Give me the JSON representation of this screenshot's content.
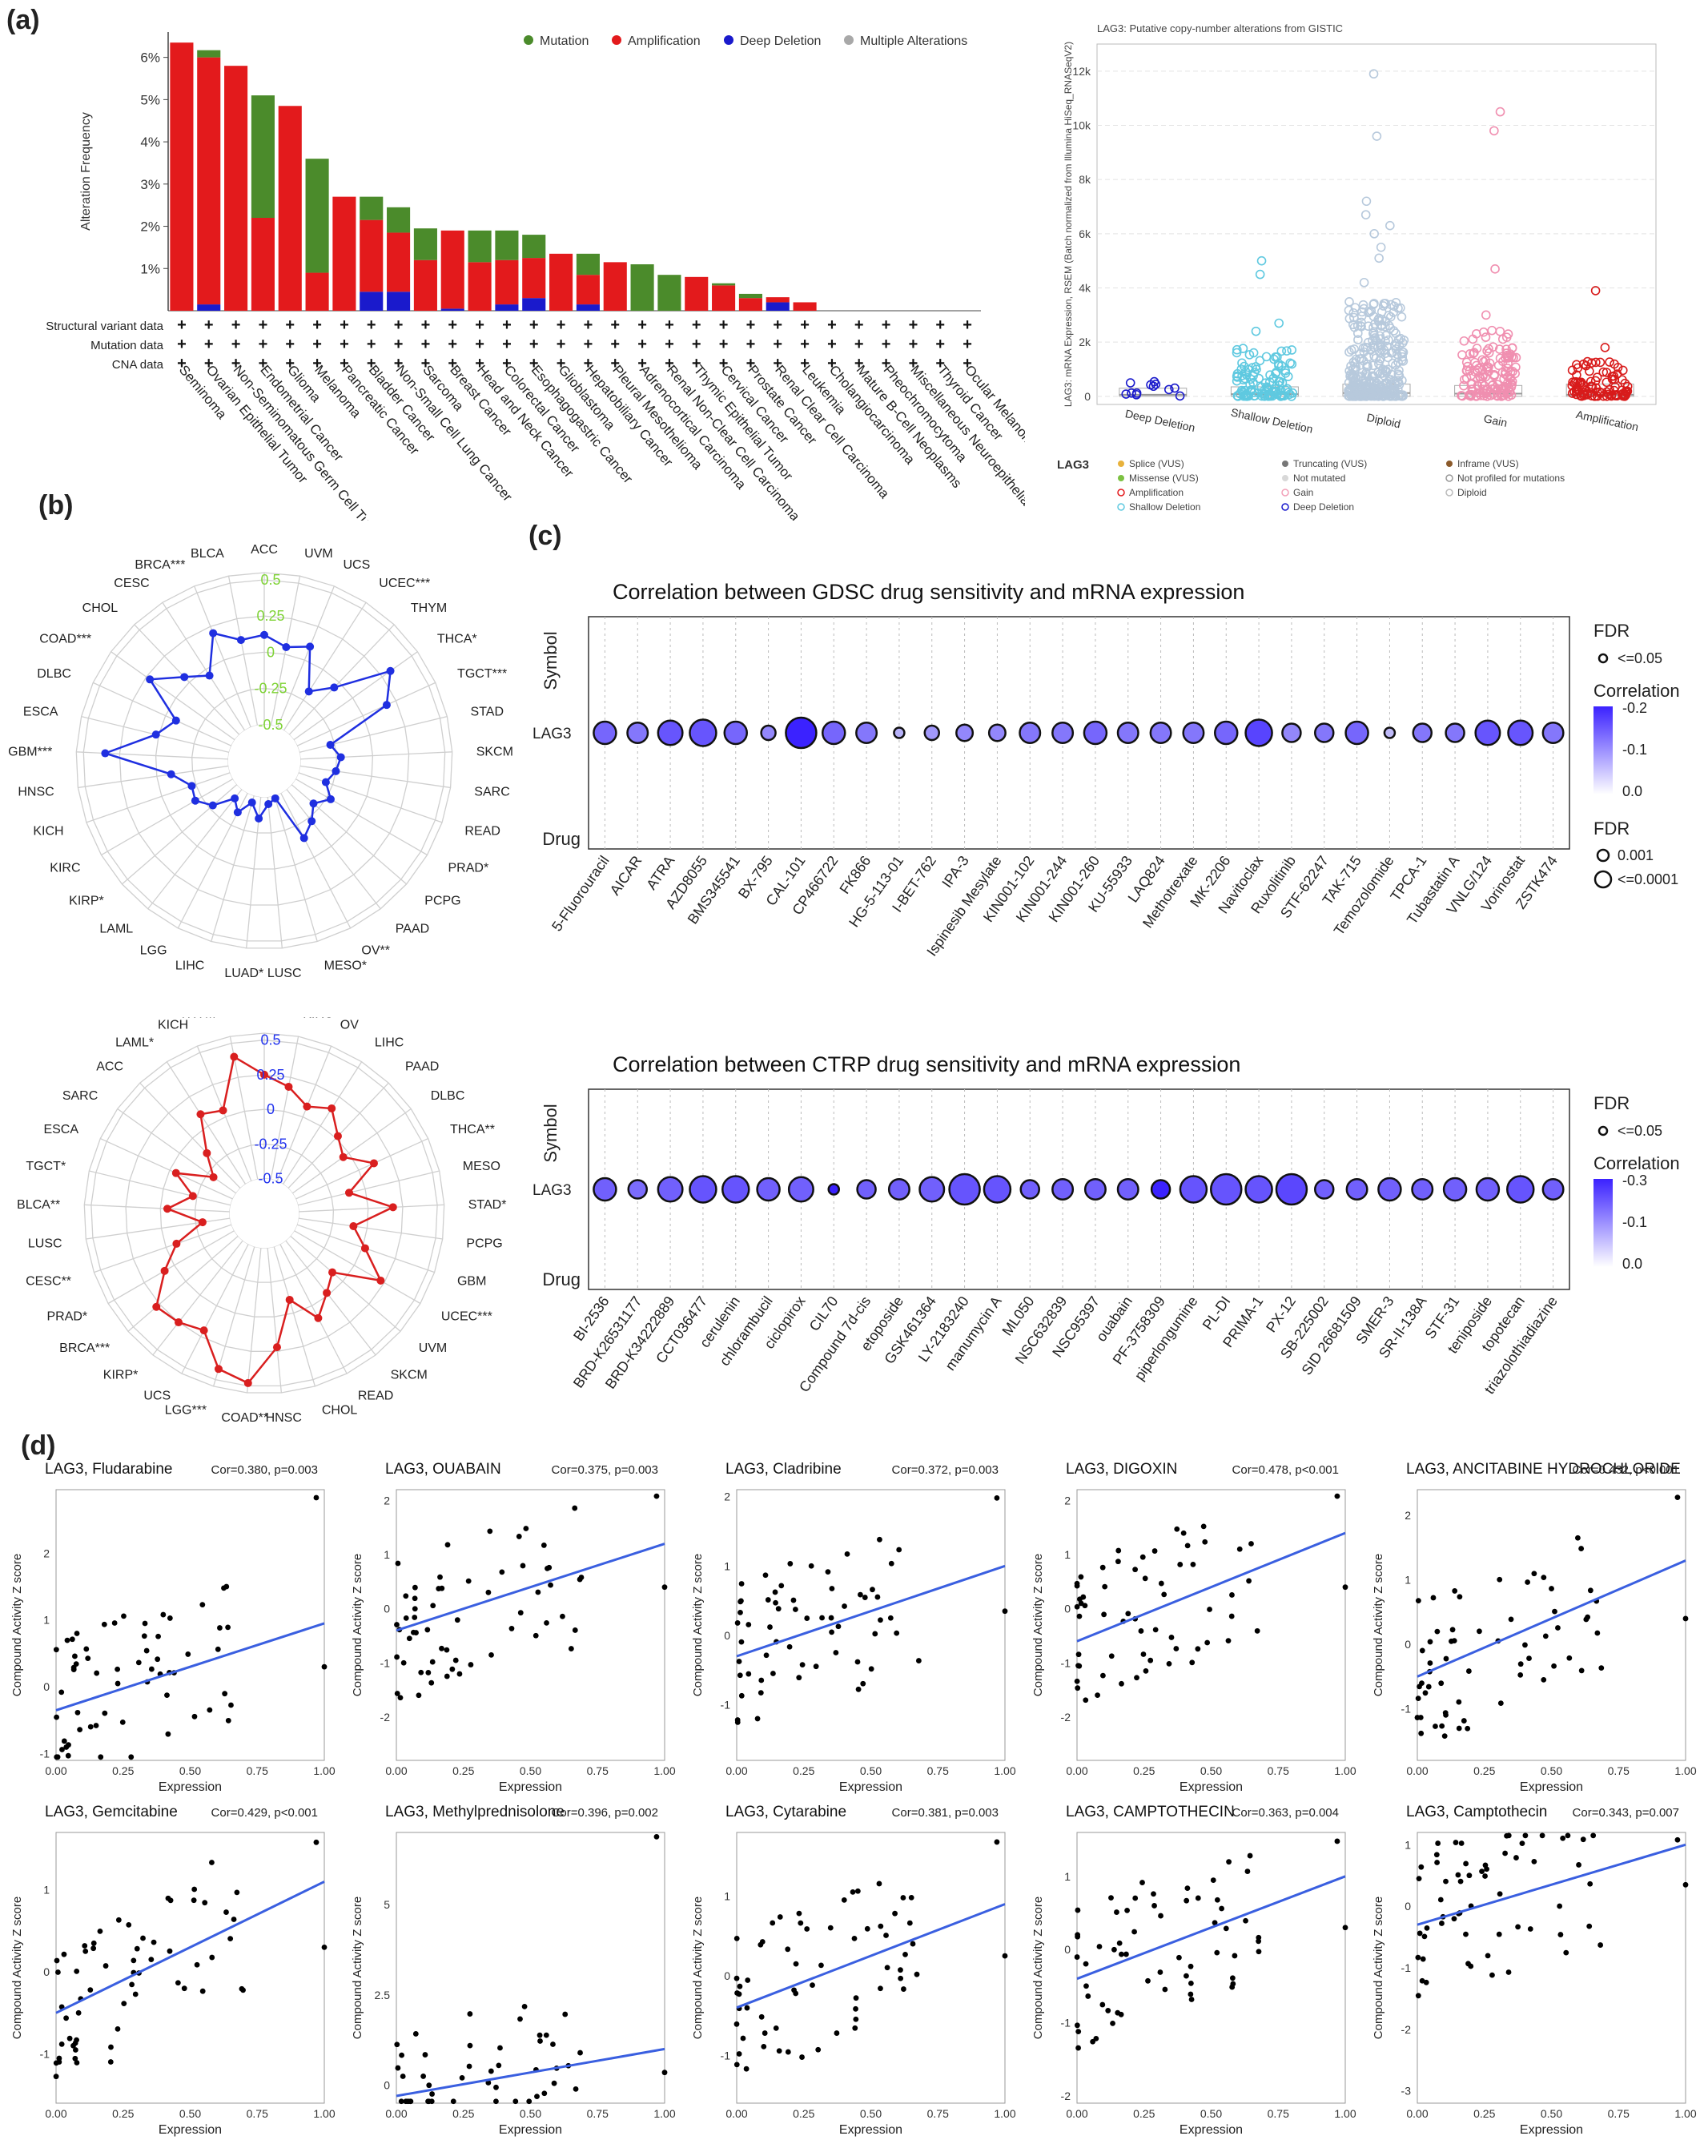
{
  "panel_labels": {
    "a": "(a)",
    "b": "(b)",
    "c": "(c)",
    "d": "(d)"
  },
  "colors": {
    "mutation": "#4b8b2b",
    "amplification": "#e31a1c",
    "deep_deletion": "#1a1acc",
    "multiple": "#a8a8a8",
    "radar_blue": "#1f2fe0",
    "radar_red": "#d91f1f",
    "radar_blue_ticks": "#7fd336",
    "radar_red_ticks": "#2233ee",
    "regression": "#3a5fe0",
    "dot_lo": "#dcdcf7",
    "dot_hi": "#3b22ff"
  },
  "chart_data": [
    {
      "id": "cbio_alteration",
      "type": "bar",
      "ylabel": "Alteration Frequency",
      "ylim": [
        0,
        6.6
      ],
      "yticks": [
        "1%",
        "2%",
        "3%",
        "4%",
        "5%",
        "6%"
      ],
      "legend": [
        "Mutation",
        "Amplification",
        "Deep Deletion",
        "Multiple Alterations"
      ],
      "row_labels": [
        "Structural variant data",
        "Mutation data",
        "CNA data"
      ],
      "row_marker": "+",
      "categories": [
        "Seminoma",
        "Ovarian Epithelial Tumor",
        "Non-Seminomatous Germ Cell Tumor",
        "Endometrial Cancer",
        "Glioma",
        "Melanoma",
        "Pancreatic Cancer",
        "Bladder Cancer",
        "Non-Small Cell Lung Cancer",
        "Sarcoma",
        "Breast Cancer",
        "Head and Neck Cancer",
        "Colorectal Cancer",
        "Esophagogastric Cancer",
        "Glioblastoma",
        "Hepatobiliary Cancer",
        "Pleural Mesothelioma",
        "Adrenocortical Carcinoma",
        "Renal Non-Clear Cell Carcinoma",
        "Thymic Epithelial Tumor",
        "Cervical Cancer",
        "Prostate Cancer",
        "Renal Clear Cell Carcinoma",
        "Leukemia",
        "Cholangiocarcinoma",
        "Mature B-Cell Neoplasms",
        "Pheochromocytoma",
        "Miscellaneous Neuroepithelial Tumor",
        "Thyroid Cancer",
        "Ocular Melanoma"
      ],
      "series": [
        {
          "name": "Deep Deletion",
          "values": [
            0,
            0.15,
            0,
            0,
            0,
            0,
            0,
            0.45,
            0.45,
            0,
            0.05,
            0,
            0.15,
            0.3,
            0,
            0.15,
            0,
            0,
            0,
            0,
            0,
            0,
            0.2,
            0,
            0,
            0,
            0,
            0,
            0,
            0
          ]
        },
        {
          "name": "Amplification",
          "values": [
            6.35,
            5.85,
            5.8,
            2.2,
            4.85,
            0.9,
            2.7,
            1.7,
            1.4,
            1.2,
            1.85,
            1.15,
            1.05,
            0.95,
            1.35,
            0.7,
            1.15,
            0,
            0,
            0.8,
            0.6,
            0.3,
            0.12,
            0.2,
            0,
            0,
            0,
            0,
            0,
            0
          ]
        },
        {
          "name": "Mutation",
          "values": [
            0,
            0.17,
            0,
            2.9,
            0,
            2.7,
            0,
            0.55,
            0.6,
            0.75,
            0,
            0.75,
            0.7,
            0.55,
            0,
            0.5,
            0,
            1.1,
            0.85,
            0,
            0.05,
            0.1,
            0,
            0,
            0,
            0,
            0,
            0,
            0,
            0
          ]
        }
      ]
    },
    {
      "id": "cbio_strip",
      "type": "scatter",
      "title": "LAG3: Putative copy-number alterations from GISTIC",
      "ylabel": "LAG3: mRNA Expression, RSEM (Batch normalized from Illumina HiSeq_RNASeqV2)",
      "categories": [
        "Deep Deletion",
        "Shallow Deletion",
        "Diploid",
        "Gain",
        "Amplification"
      ],
      "yticks": [
        "0",
        "2k",
        "4k",
        "6k",
        "8k",
        "10k",
        "12k"
      ],
      "ylim": [
        -300,
        13000
      ],
      "legend_title": "LAG3",
      "legend": [
        [
          "Splice (VUS)",
          "#e8b23c",
          "dot"
        ],
        [
          "Truncating (VUS)",
          "#777777",
          "dot"
        ],
        [
          "Inframe (VUS)",
          "#8b5a2b",
          "dot"
        ],
        [
          "Missense (VUS)",
          "#7cc142",
          "dot"
        ],
        [
          "Not mutated",
          "#d8d8d8",
          "dot"
        ],
        [
          "Not profiled for mutations",
          "#ffffff",
          "ring-grey"
        ],
        [
          "Amplification",
          "#e31a1c",
          "ring"
        ],
        [
          "Gain",
          "#f2a0b8",
          "ring"
        ],
        [
          "Diploid",
          "#bbbbbb",
          "ring"
        ],
        [
          "Shallow Deletion",
          "#5fc9e0",
          "ring"
        ],
        [
          "Deep Deletion",
          "#1a1acc",
          "ring"
        ]
      ],
      "groups": [
        {
          "color": "#1a1acc",
          "median": 60,
          "q3": 300,
          "n": 12,
          "max": 700,
          "outliers": []
        },
        {
          "color": "#5fc9e0",
          "median": 80,
          "q3": 350,
          "n": 110,
          "max": 1800,
          "outliers": [
            2400,
            2700,
            4500,
            5000
          ]
        },
        {
          "color": "#b7c9dc",
          "median": 120,
          "q3": 450,
          "n": 320,
          "max": 3500,
          "outliers": [
            4200,
            5100,
            5500,
            6000,
            6300,
            6700,
            7200,
            9600,
            11900
          ]
        },
        {
          "color": "#f08fb0",
          "median": 100,
          "q3": 400,
          "n": 140,
          "max": 2600,
          "outliers": [
            3000,
            4700,
            9800,
            10500
          ]
        },
        {
          "color": "#d81b1b",
          "median": 60,
          "q3": 450,
          "n": 90,
          "max": 1300,
          "outliers": [
            1800,
            3900
          ]
        }
      ]
    },
    {
      "id": "radar_blue",
      "type": "radar",
      "rticks": [
        "0.5",
        "0.25",
        "0",
        "-0.25",
        "-0.5"
      ],
      "rlim": [
        -0.75,
        0.55
      ],
      "categories": [
        "ACC",
        "UVM",
        "UCS",
        "UCEC***",
        "THYM",
        "THCA*",
        "TGCT***",
        "STAD",
        "SKCM",
        "SARC",
        "READ",
        "PRAD*",
        "PCPG",
        "PAAD",
        "OV**",
        "MESO*",
        "LUSC",
        "LUAD*",
        "LIHC",
        "LGG",
        "LAML",
        "KIRP*",
        "KIRC",
        "KICH",
        "HNSC",
        "GBM***",
        "ESCA",
        "DLBC",
        "COAD***",
        "CHOL",
        "CESC",
        "BRCA***",
        "BLCA"
      ],
      "values": [
        0.12,
        0.05,
        0.1,
        -0.18,
        -0.05,
        0.32,
        0.18,
        -0.28,
        -0.22,
        -0.25,
        -0.3,
        -0.22,
        -0.3,
        -0.22,
        -0.15,
        -0.48,
        -0.45,
        -0.35,
        -0.45,
        -0.35,
        -0.42,
        -0.28,
        -0.2,
        -0.22,
        -0.1,
        0.35,
        0.02,
        -0.08,
        0.22,
        0.05,
        -0.05,
        0.2,
        0.1
      ]
    },
    {
      "id": "radar_red",
      "type": "radar",
      "rticks": [
        "0.5",
        "0.25",
        "0",
        "-0.25",
        "-0.5"
      ],
      "rlim": [
        -0.75,
        0.55
      ],
      "categories": [
        "LUAD**",
        "KIRC*",
        "OV",
        "LIHC",
        "PAAD",
        "DLBC",
        "THCA**",
        "MESO",
        "STAD*",
        "PCPG",
        "GBM",
        "UCEC***",
        "UVM",
        "SKCM",
        "READ",
        "CHOL",
        "HNSC",
        "COAD**",
        "LGG***",
        "UCS",
        "KIRP*",
        "BRCA***",
        "PRAD*",
        "CESC**",
        "LUSC",
        "BLCA**",
        "TGCT*",
        "ESCA",
        "SARC",
        "ACC",
        "LAML*",
        "KICH",
        "THYM**"
      ],
      "values": [
        0.25,
        0.18,
        0.08,
        0.15,
        0.02,
        -0.05,
        0.12,
        -0.12,
        0.18,
        -0.1,
        0.02,
        0.22,
        -0.1,
        -0.02,
        0.1,
        -0.1,
        0.22,
        0.48,
        0.42,
        0.2,
        0.25,
        0.28,
        0.08,
        -0.08,
        -0.3,
        -0.05,
        -0.22,
        -0.05,
        -0.3,
        -0.15,
        0.1,
        0.05,
        0.4
      ]
    },
    {
      "id": "gdsc_bubble",
      "type": "scatter",
      "title": "Correlation between GDSC drug sensitivity and mRNA expression",
      "xlabel": "Drug",
      "ylabel": "Symbol",
      "row": "LAG3",
      "legend_fdr_title": "FDR",
      "legend_fdr": [
        "<=0.05"
      ],
      "legend_corr_title": "Correlation",
      "legend_corr_ticks": [
        "-0.2",
        "-0.1",
        "0.0"
      ],
      "legend_size_title": "FDR",
      "legend_size": [
        "0.001",
        "<=0.0001"
      ],
      "legend_size_truncated": "1",
      "drugs": [
        "5-Fluorouracil",
        "AICAR",
        "ATRA",
        "AZD8055",
        "BMS345541",
        "BX-795",
        "CAL-101",
        "CP466722",
        "FK866",
        "HG-5-113-01",
        "I-BET-762",
        "IPA-3",
        "Ispinesib Mesylate",
        "KIN001-102",
        "KIN001-244",
        "KIN001-260",
        "KU-55933",
        "LAQ824",
        "Methotrexate",
        "MK-2206",
        "Navitoclax",
        "Ruxolitinib",
        "STF-62247",
        "TAK-715",
        "Temozolomide",
        "TPCA-1",
        "Tubastatin A",
        "VNLG/124",
        "Vorinostat",
        "ZSTK474"
      ],
      "correlation": [
        -0.14,
        -0.12,
        -0.16,
        -0.16,
        -0.14,
        -0.1,
        -0.22,
        -0.14,
        -0.12,
        -0.05,
        -0.08,
        -0.1,
        -0.1,
        -0.12,
        -0.12,
        -0.14,
        -0.12,
        -0.12,
        -0.12,
        -0.14,
        -0.18,
        -0.1,
        -0.12,
        -0.14,
        -0.04,
        -0.12,
        -0.12,
        -0.16,
        -0.16,
        -0.12
      ],
      "log10_fdr": [
        4,
        3.5,
        4.5,
        5,
        4,
        2,
        6,
        4,
        3.5,
        1,
        2,
        2.5,
        2.5,
        3.5,
        3.5,
        4,
        3.5,
        3.5,
        3.5,
        4,
        5,
        3,
        3,
        4,
        1,
        3,
        3,
        4.5,
        4.5,
        3.5
      ]
    },
    {
      "id": "ctrp_bubble",
      "type": "scatter",
      "title": "Correlation between CTRP drug sensitivity and mRNA expression",
      "xlabel": "Drug",
      "ylabel": "Symbol",
      "row": "LAG3",
      "legend_fdr_title": "FDR",
      "legend_fdr": [
        "<=0.05"
      ],
      "legend_corr_title": "Correlation",
      "legend_corr_ticks": [
        "-0.3",
        "-0.1",
        "0.0"
      ],
      "drugs": [
        "BI-2536",
        "BRD-K26531177",
        "BRD-K34222889",
        "CCT036477",
        "cerulenin",
        "chlorambucil",
        "ciclopirox",
        "CIL70",
        "Compound 7d-cis",
        "etoposide",
        "GSK461364",
        "LY-2183240",
        "manumycin A",
        "ML050",
        "NSC632839",
        "NSC95397",
        "ouabain",
        "PF-3758309",
        "piperlongumine",
        "PL-DI",
        "PRIMA-1",
        "PX-12",
        "SB-225002",
        "SID 26681509",
        "SMER-3",
        "SR-II-138A",
        "STF-31",
        "teniposide",
        "topotecan",
        "triazolothiadiazine"
      ],
      "correlation": [
        -0.2,
        -0.18,
        -0.2,
        -0.22,
        -0.22,
        -0.2,
        -0.2,
        -0.3,
        -0.2,
        -0.2,
        -0.2,
        -0.22,
        -0.22,
        -0.2,
        -0.2,
        -0.2,
        -0.2,
        -0.3,
        -0.22,
        -0.22,
        -0.22,
        -0.24,
        -0.2,
        -0.2,
        -0.2,
        -0.2,
        -0.2,
        -0.2,
        -0.22,
        -0.2
      ],
      "log10_fdr": [
        4,
        3,
        4.5,
        5,
        5,
        4,
        4.5,
        1,
        3,
        3.5,
        4.5,
        6,
        5,
        3,
        3.5,
        3.5,
        3.5,
        3,
        5,
        6,
        5,
        6,
        3,
        3.5,
        4,
        3.5,
        4,
        4,
        5,
        3.5
      ]
    },
    {
      "id": "scatter_grid",
      "type": "scatter",
      "xlabel": "Expression",
      "ylabel": "Compound Activity Z score",
      "xticks": [
        "0.00",
        "0.25",
        "0.50",
        "0.75",
        "1.00"
      ],
      "plots": [
        {
          "name": "LAG3, Fludarabine",
          "stat": "Cor=0.380, p=0.003",
          "ylim": [
            -1.1,
            2.95
          ],
          "yticks": [
            -1,
            0,
            1,
            2
          ],
          "line": [
            -0.35,
            0.95
          ],
          "n": 60,
          "seed": 3
        },
        {
          "name": "LAG3, OUABAIN",
          "stat": "Cor=0.375, p=0.003",
          "ylim": [
            -2.8,
            2.2
          ],
          "yticks": [
            -2,
            -1,
            0,
            1,
            2
          ],
          "line": [
            -0.4,
            1.2
          ],
          "n": 58,
          "seed": 7
        },
        {
          "name": "LAG3, Cladribine",
          "stat": "Cor=0.372, p=0.003",
          "ylim": [
            -1.8,
            2.1
          ],
          "yticks": [
            -1,
            0,
            1,
            2
          ],
          "line": [
            -0.3,
            1.0
          ],
          "n": 60,
          "seed": 11
        },
        {
          "name": "LAG3, DIGOXIN",
          "stat": "Cor=0.478, p<0.001",
          "ylim": [
            -2.8,
            2.2
          ],
          "yticks": [
            -2,
            -1,
            0,
            1,
            2
          ],
          "line": [
            -0.6,
            1.4
          ],
          "n": 60,
          "seed": 13
        },
        {
          "name": "LAG3, ANCITABINE HYDROCHLORIDE",
          "stat": "Cor=0.432, p<0.001",
          "ylim": [
            -1.8,
            2.4
          ],
          "yticks": [
            -1,
            0,
            1,
            2
          ],
          "line": [
            -0.5,
            1.3
          ],
          "n": 60,
          "seed": 17
        },
        {
          "name": "LAG3, Gemcitabine",
          "stat": "Cor=0.429, p<0.001",
          "ylim": [
            -1.6,
            1.7
          ],
          "yticks": [
            -1,
            0,
            1
          ],
          "line": [
            -0.5,
            1.1
          ],
          "n": 60,
          "seed": 19
        },
        {
          "name": "LAG3, Methylprednisolone",
          "stat": "Cor=0.396, p=0.002",
          "ylim": [
            -0.5,
            7.0
          ],
          "yticks": [
            0,
            2.5,
            5
          ],
          "line": [
            -0.3,
            1.0
          ],
          "n": 45,
          "seed": 23
        },
        {
          "name": "LAG3, Cytarabine",
          "stat": "Cor=0.381, p=0.003",
          "ylim": [
            -1.6,
            1.8
          ],
          "yticks": [
            -1,
            0,
            1
          ],
          "line": [
            -0.4,
            0.9
          ],
          "n": 60,
          "seed": 29
        },
        {
          "name": "LAG3, CAMPTOTHECIN",
          "stat": "Cor=0.363, p=0.004",
          "ylim": [
            -2.1,
            1.6
          ],
          "yticks": [
            -2,
            -1,
            0,
            1
          ],
          "line": [
            -0.4,
            1.0
          ],
          "n": 60,
          "seed": 31
        },
        {
          "name": "LAG3, Camptothecin",
          "stat": "Cor=0.343, p=0.007",
          "ylim": [
            -3.2,
            1.2
          ],
          "yticks": [
            -3,
            -2,
            -1,
            0,
            1
          ],
          "line": [
            -0.3,
            1.0
          ],
          "n": 60,
          "seed": 37
        }
      ]
    }
  ]
}
